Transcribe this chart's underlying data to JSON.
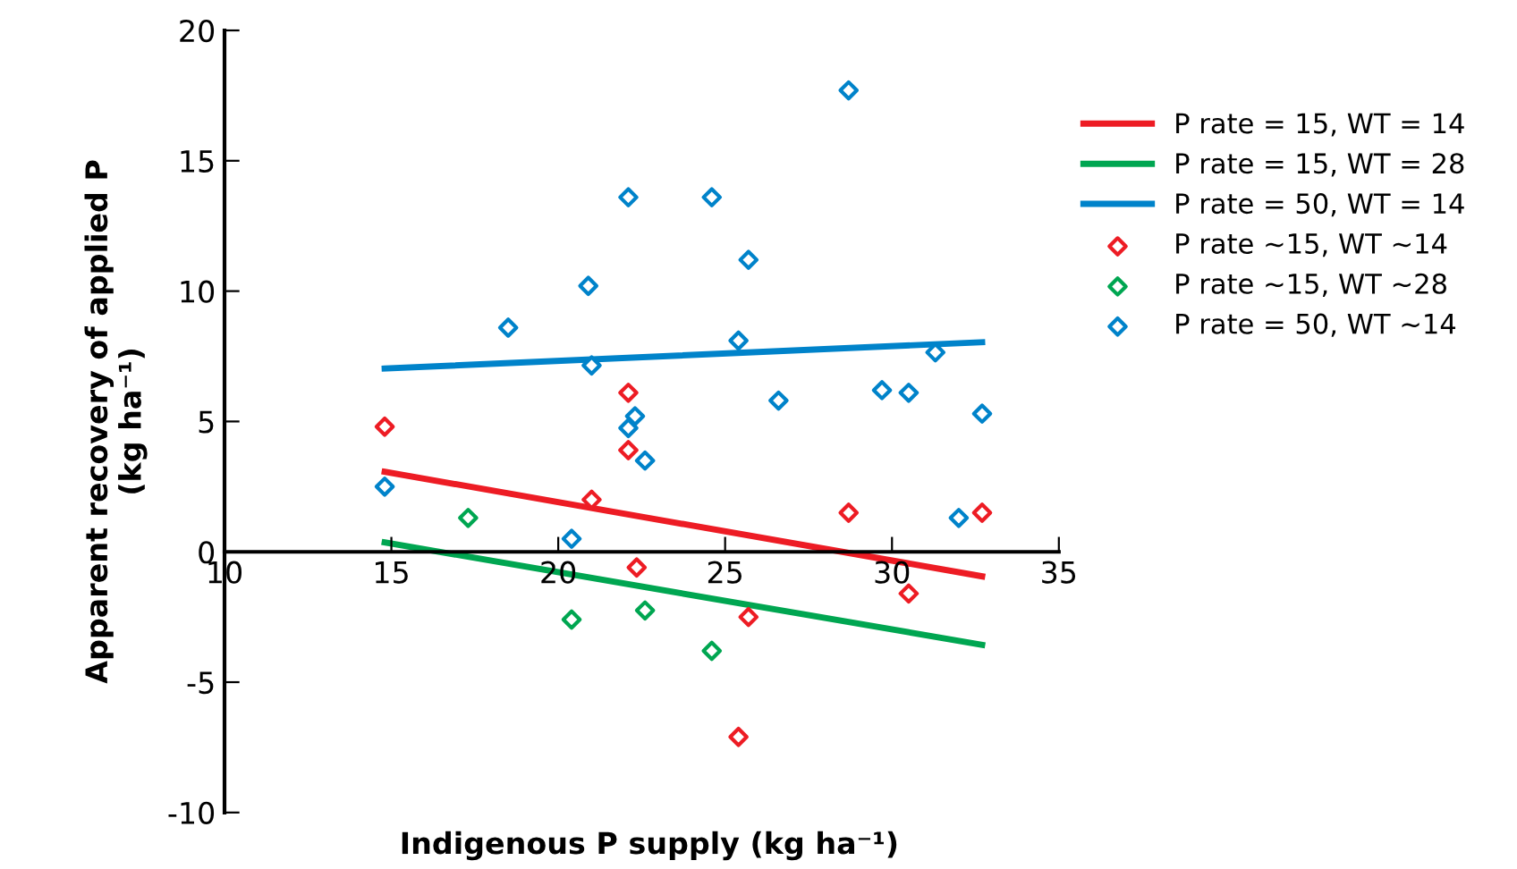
{
  "chart_data": {
    "type": "scatter",
    "xlabel": "Indigenous P supply (kg ha⁻¹)",
    "ylabel": "Apparent recovery of applied P\n(kg ha⁻¹)",
    "xlim": [
      10,
      35
    ],
    "xticks": [
      10,
      15,
      20,
      25,
      30,
      35
    ],
    "ylim": [
      -10,
      20
    ],
    "yticks": [
      -10,
      -5,
      0,
      5,
      10,
      15,
      20
    ],
    "grid": false,
    "legend": "right",
    "series": [
      {
        "name": "P rate = 15, WT = 14",
        "type": "line",
        "color": "#ed1c24",
        "marker": "none",
        "line_style": "solid",
        "x": [
          14.8,
          32.7
        ],
        "values": [
          3.07,
          -0.94
        ]
      },
      {
        "name": "P rate = 15, WT = 28",
        "type": "line",
        "color": "#00a651",
        "marker": "none",
        "line_style": "solid",
        "x": [
          14.8,
          32.7
        ],
        "values": [
          0.36,
          -3.57
        ]
      },
      {
        "name": "P rate = 50, WT = 14",
        "type": "line",
        "color": "#0083ca",
        "marker": "none",
        "line_style": "solid",
        "x": [
          14.8,
          32.7
        ],
        "values": [
          7.03,
          8.04
        ]
      },
      {
        "name": "P rate ~15, WT ~14",
        "color": "#ed1c24",
        "marker": "diamond",
        "x": [
          14.8,
          22.1,
          22.1,
          21.0,
          22.35,
          28.7,
          32.7,
          30.5,
          25.7,
          25.4
        ],
        "values": [
          4.8,
          6.1,
          3.9,
          2.0,
          -0.6,
          1.5,
          1.5,
          -1.6,
          -2.5,
          -7.1
        ]
      },
      {
        "name": "P rate ~15, WT ~28",
        "color": "#00a651",
        "marker": "diamond",
        "x": [
          17.3,
          20.4,
          22.6,
          24.6
        ],
        "values": [
          1.3,
          -2.6,
          -2.25,
          -3.8
        ]
      },
      {
        "name": "P rate = 50, WT ~14",
        "color": "#0083ca",
        "marker": "diamond",
        "x": [
          14.8,
          18.5,
          20.9,
          21.0,
          22.1,
          22.1,
          22.3,
          22.6,
          20.4,
          28.7,
          24.6,
          25.7,
          25.4,
          26.6,
          29.7,
          30.5,
          31.3,
          32.7,
          32.0
        ],
        "values": [
          2.5,
          8.6,
          10.2,
          7.15,
          13.6,
          4.75,
          5.2,
          3.5,
          0.5,
          17.7,
          13.6,
          11.2,
          8.1,
          5.8,
          6.2,
          6.1,
          7.65,
          5.3,
          1.3
        ]
      }
    ]
  }
}
